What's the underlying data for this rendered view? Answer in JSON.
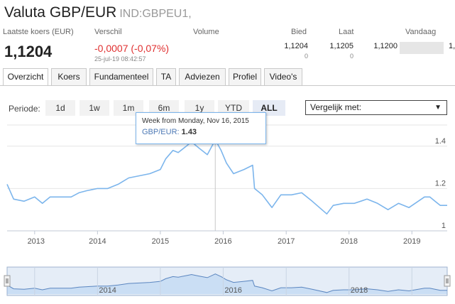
{
  "header": {
    "title": "Valuta GBP/EUR",
    "code": "IND:GBPEU1,"
  },
  "quote": {
    "labels": {
      "last": "Laatste koers (EUR)",
      "change": "Verschil",
      "volume": "Volume",
      "bid": "Bied",
      "ask": "Laat",
      "today": "Vandaag"
    },
    "last_price": "1,1204",
    "change": "-0,0007",
    "change_pct": "-0,07%",
    "timestamp": "25-jul-19 08:42:57",
    "bid": "1,1204",
    "bid_size": "0",
    "ask": "1,1205",
    "ask_size": "0",
    "today_low": "1,1200",
    "today_high_edge": "1,"
  },
  "tabs": [
    {
      "label": "Overzicht",
      "active": true
    },
    {
      "label": "Koers",
      "active": false
    },
    {
      "label": "Fundamenteel",
      "active": false
    },
    {
      "label": "TA",
      "active": false
    },
    {
      "label": "Adviezen",
      "active": false
    },
    {
      "label": "Profiel",
      "active": false
    },
    {
      "label": "Video's",
      "active": false
    }
  ],
  "period": {
    "label": "Periode:",
    "options": [
      "1d",
      "1w",
      "1m",
      "6m",
      "1y",
      "YTD",
      "ALL"
    ],
    "selected": "ALL"
  },
  "compare": {
    "label": "Vergelijk met:",
    "icon": "dropdown-arrow-icon"
  },
  "tooltip": {
    "title": "Week from Monday, Nov 16, 2015",
    "series_label": "GBP/EUR:",
    "value": "1.43"
  },
  "colors": {
    "line": "#7cb5ec",
    "navigator_fill": "#dbe6f5",
    "negative": "#e03030"
  },
  "chart_data": {
    "type": "line",
    "series": [
      {
        "values": [
          [
            "2012-07-25",
            1.22
          ],
          [
            "2012-09-01",
            1.15
          ],
          [
            "2012-11-01",
            1.14
          ],
          [
            "2013-01-01",
            1.16
          ],
          [
            "2013-02-15",
            1.13
          ],
          [
            "2013-04-01",
            1.16
          ],
          [
            "2013-06-01",
            1.16
          ],
          [
            "2013-08-01",
            1.16
          ],
          [
            "2013-09-15",
            1.18
          ],
          [
            "2013-11-01",
            1.19
          ],
          [
            "2014-01-01",
            1.2
          ],
          [
            "2014-03-01",
            1.2
          ],
          [
            "2014-05-01",
            1.22
          ],
          [
            "2014-07-01",
            1.25
          ],
          [
            "2014-09-01",
            1.26
          ],
          [
            "2014-11-01",
            1.27
          ],
          [
            "2015-01-01",
            1.29
          ],
          [
            "2015-02-01",
            1.34
          ],
          [
            "2015-03-15",
            1.38
          ],
          [
            "2015-04-15",
            1.37
          ],
          [
            "2015-06-01",
            1.4
          ],
          [
            "2015-07-01",
            1.42
          ],
          [
            "2015-08-15",
            1.39
          ],
          [
            "2015-10-01",
            1.36
          ],
          [
            "2015-11-16",
            1.43
          ],
          [
            "2015-12-20",
            1.38
          ],
          [
            "2016-01-20",
            1.32
          ],
          [
            "2016-03-01",
            1.27
          ],
          [
            "2016-05-01",
            1.29
          ],
          [
            "2016-06-20",
            1.31
          ],
          [
            "2016-07-01",
            1.2
          ],
          [
            "2016-08-15",
            1.17
          ],
          [
            "2016-10-10",
            1.11
          ],
          [
            "2016-12-01",
            1.17
          ],
          [
            "2017-02-01",
            1.17
          ],
          [
            "2017-04-01",
            1.18
          ],
          [
            "2017-06-01",
            1.14
          ],
          [
            "2017-08-25",
            1.08
          ],
          [
            "2017-10-01",
            1.12
          ],
          [
            "2017-12-01",
            1.13
          ],
          [
            "2018-02-01",
            1.13
          ],
          [
            "2018-04-15",
            1.15
          ],
          [
            "2018-06-15",
            1.13
          ],
          [
            "2018-08-15",
            1.1
          ],
          [
            "2018-10-15",
            1.13
          ],
          [
            "2018-12-15",
            1.11
          ],
          [
            "2019-03-15",
            1.16
          ],
          [
            "2019-04-15",
            1.16
          ],
          [
            "2019-05-15",
            1.14
          ],
          [
            "2019-06-15",
            1.12
          ],
          [
            "2019-07-25",
            1.12
          ]
        ]
      }
    ],
    "x_ticks": [
      "2013",
      "2014",
      "2015",
      "2016",
      "2017",
      "2018",
      "2019"
    ],
    "y_ticks": [
      "1",
      "1.2",
      "1.4"
    ],
    "navigator_ticks": [
      "2014",
      "2016",
      "2018"
    ],
    "ylim": [
      1.0,
      1.5
    ],
    "grid": true,
    "tooltip_point": [
      "2015-11-16",
      1.43
    ]
  }
}
